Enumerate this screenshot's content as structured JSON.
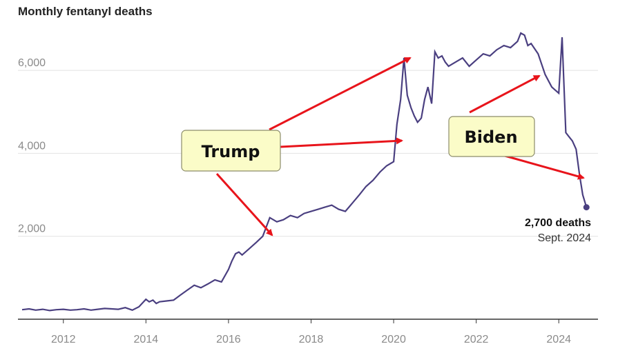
{
  "chart_data": {
    "type": "line",
    "title": "Monthly fentanyl deaths",
    "xlabel": "",
    "ylabel": "",
    "xlim": [
      2010.9,
      2024.95
    ],
    "ylim": [
      0,
      7100
    ],
    "grid": true,
    "xticks": [
      {
        "value": 2012,
        "label": "2012"
      },
      {
        "value": 2014,
        "label": "2014"
      },
      {
        "value": 2016,
        "label": "2016"
      },
      {
        "value": 2018,
        "label": "2018"
      },
      {
        "value": 2020,
        "label": "2020"
      },
      {
        "value": 2022,
        "label": "2022"
      },
      {
        "value": 2024,
        "label": "2024"
      }
    ],
    "yticks": [
      {
        "value": 2000,
        "label": "2,000"
      },
      {
        "value": 4000,
        "label": "4,000"
      },
      {
        "value": 6000,
        "label": "6,000"
      }
    ],
    "line_color": "#4a3f80",
    "series": [
      {
        "x": [
          2011.0,
          2011.17,
          2011.33,
          2011.5,
          2011.67,
          2011.83,
          2012.0,
          2012.17,
          2012.33,
          2012.5,
          2012.67,
          2012.83,
          2013.0,
          2013.17,
          2013.33,
          2013.5,
          2013.67,
          2013.83,
          2014.0,
          2014.08,
          2014.17,
          2014.25,
          2014.33,
          2014.5,
          2014.67,
          2014.83,
          2015.0,
          2015.17,
          2015.33,
          2015.5,
          2015.67,
          2015.83,
          2016.0,
          2016.08,
          2016.17,
          2016.25,
          2016.33,
          2016.5,
          2016.67,
          2016.83,
          2017.0,
          2017.17,
          2017.33,
          2017.5,
          2017.67,
          2017.83,
          2018.0,
          2018.17,
          2018.33,
          2018.5,
          2018.67,
          2018.83,
          2019.0,
          2019.17,
          2019.33,
          2019.5,
          2019.67,
          2019.83,
          2020.0,
          2020.08,
          2020.17,
          2020.25,
          2020.33,
          2020.42,
          2020.5,
          2020.58,
          2020.67,
          2020.75,
          2020.83,
          2020.92,
          2021.0,
          2021.08,
          2021.17,
          2021.25,
          2021.33,
          2021.5,
          2021.67,
          2021.83,
          2022.0,
          2022.17,
          2022.33,
          2022.5,
          2022.67,
          2022.83,
          2023.0,
          2023.08,
          2023.17,
          2023.25,
          2023.33,
          2023.5,
          2023.67,
          2023.83,
          2024.0,
          2024.08,
          2024.17,
          2024.25,
          2024.33,
          2024.42,
          2024.5,
          2024.58,
          2024.67
        ],
        "y": [
          230,
          250,
          220,
          240,
          210,
          230,
          240,
          220,
          230,
          250,
          220,
          240,
          260,
          250,
          240,
          280,
          220,
          300,
          480,
          420,
          460,
          380,
          420,
          440,
          460,
          580,
          700,
          820,
          760,
          850,
          950,
          900,
          1200,
          1400,
          1580,
          1620,
          1550,
          1700,
          1850,
          2000,
          2450,
          2350,
          2400,
          2500,
          2450,
          2550,
          2600,
          2650,
          2700,
          2750,
          2650,
          2600,
          2800,
          3000,
          3200,
          3350,
          3550,
          3700,
          3800,
          4700,
          5300,
          6300,
          5400,
          5100,
          4900,
          4750,
          4850,
          5300,
          5600,
          5200,
          6450,
          6300,
          6350,
          6200,
          6100,
          6200,
          6300,
          6100,
          6250,
          6400,
          6350,
          6500,
          6600,
          6550,
          6700,
          6900,
          6850,
          6600,
          6650,
          6400,
          5900,
          5600,
          5450,
          6800,
          4500,
          4400,
          4300,
          4100,
          3500,
          3000,
          2700
        ]
      }
    ],
    "end_label": {
      "value": "2,700 deaths",
      "date": "Sept. 2024"
    },
    "annotations": [
      {
        "text": "Trump"
      },
      {
        "text": "Biden"
      }
    ]
  }
}
